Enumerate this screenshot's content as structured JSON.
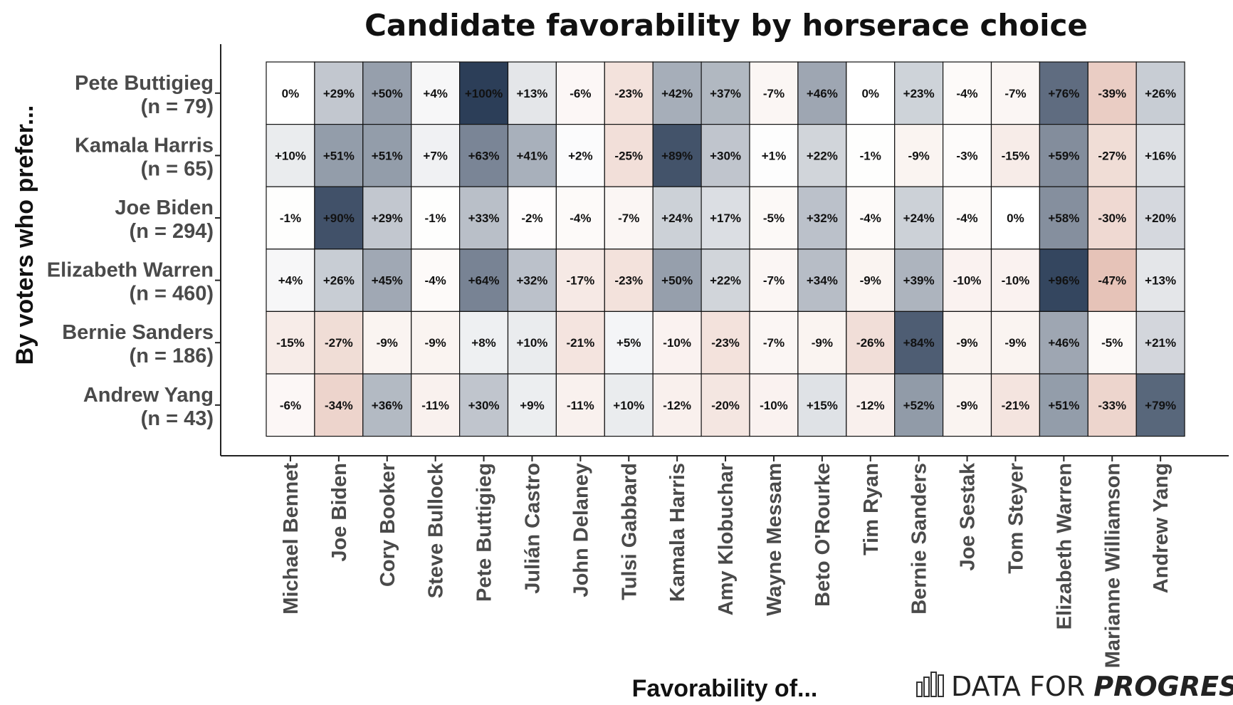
{
  "chart_data": {
    "type": "heatmap",
    "title": "Candidate favorability by horserace choice",
    "xlabel": "Favorability of...",
    "ylabel": "By voters who prefer...",
    "columns": [
      "Michael Bennet",
      "Joe Biden",
      "Cory Booker",
      "Steve Bullock",
      "Pete Buttigieg",
      "Julián Castro",
      "John Delaney",
      "Tulsi Gabbard",
      "Kamala Harris",
      "Amy Klobuchar",
      "Wayne Messam",
      "Beto O'Rourke",
      "Tim Ryan",
      "Bernie Sanders",
      "Joe Sestak",
      "Tom Steyer",
      "Elizabeth Warren",
      "Marianne Williamson",
      "Andrew Yang"
    ],
    "rows": [
      {
        "name": "Pete Buttigieg",
        "n": "(n = 79)",
        "values": [
          0,
          29,
          50,
          4,
          100,
          13,
          -6,
          -23,
          42,
          37,
          -7,
          46,
          0,
          23,
          -4,
          -7,
          76,
          -39,
          26
        ]
      },
      {
        "name": "Kamala Harris",
        "n": "(n = 65)",
        "values": [
          10,
          51,
          51,
          7,
          63,
          41,
          2,
          -25,
          89,
          30,
          1,
          22,
          -1,
          -9,
          -3,
          -15,
          59,
          -27,
          16
        ]
      },
      {
        "name": "Joe Biden",
        "n": "(n = 294)",
        "values": [
          -1,
          90,
          29,
          -1,
          33,
          -2,
          -4,
          -7,
          24,
          17,
          -5,
          32,
          -4,
          24,
          -4,
          0,
          58,
          -30,
          20
        ]
      },
      {
        "name": "Elizabeth Warren",
        "n": "(n = 460)",
        "values": [
          4,
          26,
          45,
          -4,
          64,
          32,
          -17,
          -23,
          50,
          22,
          -7,
          34,
          -9,
          39,
          -10,
          -10,
          96,
          -47,
          13
        ]
      },
      {
        "name": "Bernie Sanders",
        "n": "(n = 186)",
        "values": [
          -15,
          -27,
          -9,
          -9,
          8,
          10,
          -21,
          5,
          -10,
          -23,
          -7,
          -9,
          -26,
          84,
          -9,
          -9,
          46,
          -5,
          21
        ]
      },
      {
        "name": "Andrew Yang",
        "n": "(n = 43)",
        "values": [
          -6,
          -34,
          36,
          -11,
          30,
          9,
          -11,
          10,
          -12,
          -20,
          -10,
          15,
          -12,
          52,
          -9,
          -21,
          51,
          -33,
          79
        ]
      }
    ],
    "value_format": "signed percent",
    "colors": {
      "positive": "#2c3e58",
      "negative": "#c98068",
      "neutral": "#ffffff"
    }
  },
  "brand": {
    "prefix": "DATA FOR ",
    "emphasis": "PROGRESS",
    "icon": "bar-chart-logo-icon"
  }
}
